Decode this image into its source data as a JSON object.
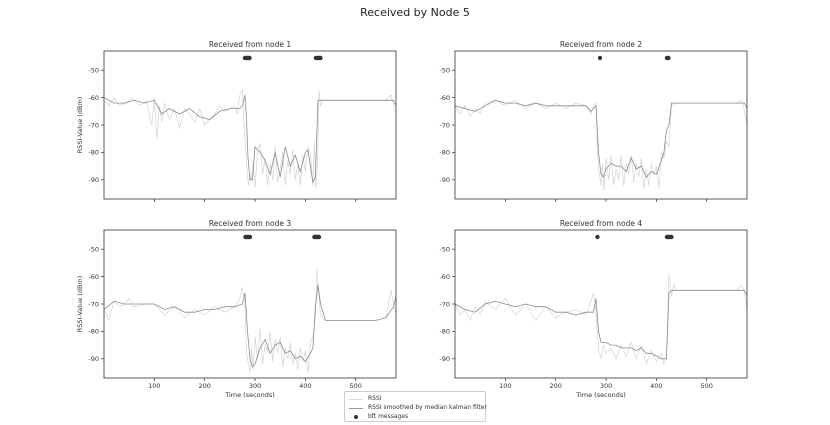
{
  "figure_title": "Received by Node 5",
  "legend": {
    "rssi": "RSSI",
    "smoothed": "RSSI smoothed by median kalman filter",
    "bft": "bft messages"
  },
  "colors": {
    "rssi": "#d4d4d4",
    "smoothed": "#8c8c8c",
    "bft": "#333333",
    "axis": "#333333"
  },
  "chart_data": [
    {
      "type": "line",
      "title": "Received from node 1",
      "ylabel": "RSSI-Value (dBm)",
      "xlabel": "",
      "xlim": [
        0,
        580
      ],
      "ylim": [
        -97,
        -43
      ],
      "xticks": [
        100,
        200,
        300,
        400,
        500
      ],
      "yticks": [
        -50,
        -60,
        -70,
        -80,
        -90
      ],
      "show_xticklabels": false,
      "series": [
        {
          "name": "RSSI smoothed by median kalman filter",
          "x": [
            0,
            20,
            40,
            60,
            80,
            100,
            115,
            130,
            150,
            170,
            190,
            210,
            230,
            250,
            270,
            275,
            280,
            283,
            286,
            290,
            295,
            300,
            310,
            320,
            330,
            340,
            350,
            360,
            370,
            380,
            390,
            400,
            405,
            410,
            415,
            420,
            425,
            430,
            440,
            460,
            480,
            500,
            520,
            540,
            560,
            575,
            580
          ],
          "y": [
            -60,
            -62,
            -62,
            -61,
            -62,
            -61,
            -66,
            -64,
            -66,
            -64,
            -67,
            -68,
            -65,
            -64,
            -64,
            -63,
            -59,
            -68,
            -82,
            -90,
            -90,
            -78,
            -80,
            -83,
            -88,
            -80,
            -89,
            -78,
            -85,
            -81,
            -87,
            -80,
            -79,
            -85,
            -91,
            -89,
            -61,
            -61,
            -61,
            -61,
            -61,
            -61,
            -61,
            -61,
            -61,
            -61,
            -63
          ]
        },
        {
          "name": "RSSI",
          "x": [
            0,
            10,
            20,
            30,
            45,
            55,
            70,
            85,
            90,
            95,
            100,
            105,
            110,
            115,
            120,
            130,
            140,
            150,
            160,
            170,
            180,
            190,
            200,
            210,
            220,
            230,
            240,
            250,
            260,
            265,
            270,
            275,
            278,
            281,
            284,
            287,
            290,
            293,
            296,
            300,
            305,
            310,
            315,
            320,
            325,
            330,
            335,
            340,
            345,
            350,
            355,
            360,
            365,
            370,
            375,
            380,
            385,
            390,
            395,
            400,
            405,
            410,
            415,
            418,
            421,
            424,
            427,
            430,
            435,
            445,
            460,
            480,
            500,
            520,
            540,
            560,
            570,
            575,
            580
          ],
          "y": [
            -61,
            -63,
            -60,
            -63,
            -62,
            -60,
            -63,
            -61,
            -66,
            -70,
            -60,
            -75,
            -63,
            -69,
            -62,
            -68,
            -64,
            -71,
            -64,
            -66,
            -69,
            -64,
            -70,
            -68,
            -66,
            -63,
            -65,
            -64,
            -63,
            -66,
            -59,
            -57,
            -70,
            -78,
            -86,
            -92,
            -88,
            -90,
            -84,
            -93,
            -79,
            -77,
            -88,
            -82,
            -92,
            -84,
            -90,
            -78,
            -91,
            -86,
            -80,
            -92,
            -83,
            -88,
            -79,
            -90,
            -84,
            -92,
            -81,
            -87,
            -78,
            -80,
            -92,
            -76,
            -93,
            -85,
            -57,
            -63,
            -61,
            -61,
            -61,
            -61,
            -61,
            -61,
            -61,
            -61,
            -59,
            -63,
            -66
          ]
        }
      ],
      "bft_x": [
        280,
        283,
        286,
        289,
        421,
        424,
        427,
        430
      ]
    },
    {
      "type": "line",
      "title": "Received from node 2",
      "ylabel": "",
      "xlabel": "",
      "xlim": [
        0,
        580
      ],
      "ylim": [
        -97,
        -43
      ],
      "xticks": [
        100,
        200,
        300,
        400,
        500
      ],
      "yticks": [
        -50,
        -60,
        -70,
        -80,
        -90
      ],
      "show_xticklabels": false,
      "series": [
        {
          "name": "RSSI smoothed by median kalman filter",
          "x": [
            0,
            20,
            40,
            60,
            80,
            100,
            120,
            140,
            160,
            180,
            200,
            220,
            240,
            260,
            270,
            280,
            285,
            290,
            295,
            300,
            310,
            320,
            330,
            340,
            350,
            360,
            370,
            380,
            390,
            400,
            410,
            415,
            420,
            425,
            430,
            440,
            460,
            480,
            500,
            520,
            540,
            560,
            575,
            580
          ],
          "y": [
            -63,
            -64,
            -65,
            -63,
            -61,
            -62,
            -62,
            -63,
            -62,
            -63,
            -63,
            -63,
            -63,
            -63,
            -65,
            -63,
            -80,
            -88,
            -89,
            -86,
            -84,
            -85,
            -85,
            -87,
            -82,
            -86,
            -85,
            -89,
            -87,
            -88,
            -83,
            -80,
            -72,
            -70,
            -62,
            -62,
            -62,
            -62,
            -62,
            -62,
            -62,
            -62,
            -62,
            -64
          ]
        },
        {
          "name": "RSSI",
          "x": [
            0,
            10,
            20,
            30,
            40,
            50,
            60,
            80,
            100,
            120,
            140,
            160,
            180,
            200,
            220,
            240,
            260,
            270,
            275,
            280,
            283,
            286,
            290,
            293,
            296,
            300,
            305,
            310,
            315,
            320,
            325,
            330,
            335,
            340,
            345,
            350,
            355,
            360,
            365,
            370,
            375,
            380,
            385,
            390,
            395,
            400,
            405,
            410,
            415,
            420,
            425,
            430,
            440,
            460,
            480,
            500,
            520,
            540,
            560,
            570,
            575,
            580
          ],
          "y": [
            -63,
            -66,
            -63,
            -67,
            -64,
            -66,
            -62,
            -61,
            -63,
            -61,
            -64,
            -62,
            -64,
            -62,
            -64,
            -62,
            -63,
            -66,
            -63,
            -62,
            -80,
            -87,
            -92,
            -84,
            -94,
            -82,
            -90,
            -81,
            -92,
            -86,
            -90,
            -81,
            -92,
            -84,
            -88,
            -81,
            -91,
            -84,
            -89,
            -82,
            -93,
            -86,
            -92,
            -84,
            -88,
            -85,
            -93,
            -80,
            -82,
            -76,
            -78,
            -63,
            -62,
            -62,
            -62,
            -62,
            -62,
            -62,
            -62,
            -61,
            -65,
            -70
          ]
        }
      ],
      "bft_x": [
        288,
        421,
        424
      ]
    },
    {
      "type": "line",
      "title": "Received from node 3",
      "ylabel": "RSSI-Value (dBm)",
      "xlabel": "Time (seconds)",
      "xlim": [
        0,
        580
      ],
      "ylim": [
        -97,
        -43
      ],
      "xticks": [
        100,
        200,
        300,
        400,
        500
      ],
      "yticks": [
        -50,
        -60,
        -70,
        -80,
        -90
      ],
      "show_xticklabels": true,
      "series": [
        {
          "name": "RSSI smoothed by median kalman filter",
          "x": [
            0,
            20,
            40,
            60,
            80,
            100,
            120,
            140,
            160,
            180,
            200,
            220,
            240,
            260,
            275,
            280,
            285,
            290,
            295,
            300,
            310,
            320,
            330,
            340,
            350,
            360,
            370,
            380,
            390,
            400,
            410,
            415,
            420,
            425,
            430,
            440,
            460,
            480,
            500,
            520,
            540,
            560,
            575,
            580
          ],
          "y": [
            -72,
            -69,
            -70,
            -70,
            -70,
            -70,
            -72,
            -71,
            -73,
            -73,
            -72,
            -72,
            -71,
            -71,
            -70,
            -66,
            -80,
            -90,
            -93,
            -92,
            -86,
            -83,
            -88,
            -85,
            -84,
            -88,
            -87,
            -90,
            -89,
            -91,
            -88,
            -86,
            -71,
            -63,
            -70,
            -76,
            -76,
            -76,
            -76,
            -76,
            -76,
            -75,
            -71,
            -67
          ]
        },
        {
          "name": "RSSI",
          "x": [
            0,
            10,
            20,
            30,
            40,
            50,
            60,
            80,
            100,
            120,
            140,
            160,
            180,
            200,
            220,
            240,
            260,
            270,
            275,
            280,
            283,
            286,
            290,
            293,
            296,
            300,
            305,
            310,
            315,
            320,
            325,
            330,
            335,
            340,
            345,
            350,
            355,
            360,
            365,
            370,
            375,
            380,
            385,
            390,
            395,
            400,
            405,
            410,
            415,
            420,
            423,
            426,
            430,
            440,
            460,
            480,
            500,
            520,
            540,
            560,
            570,
            575,
            580
          ],
          "y": [
            -72,
            -76,
            -69,
            -71,
            -70,
            -68,
            -71,
            -70,
            -70,
            -74,
            -71,
            -75,
            -72,
            -74,
            -71,
            -73,
            -71,
            -68,
            -64,
            -70,
            -88,
            -91,
            -95,
            -86,
            -94,
            -82,
            -90,
            -79,
            -92,
            -85,
            -87,
            -80,
            -91,
            -83,
            -88,
            -82,
            -93,
            -86,
            -90,
            -84,
            -92,
            -88,
            -94,
            -86,
            -91,
            -87,
            -95,
            -84,
            -82,
            -75,
            -57,
            -65,
            -74,
            -76,
            -76,
            -76,
            -76,
            -76,
            -76,
            -75,
            -65,
            -70,
            -74
          ]
        }
      ],
      "bft_x": [
        281,
        284,
        287,
        290,
        418,
        421,
        424,
        427
      ]
    },
    {
      "type": "line",
      "title": "Received from node 4",
      "ylabel": "",
      "xlabel": "Time (seconds)",
      "xlim": [
        0,
        580
      ],
      "ylim": [
        -97,
        -43
      ],
      "xticks": [
        100,
        200,
        300,
        400,
        500
      ],
      "yticks": [
        -50,
        -60,
        -70,
        -80,
        -90
      ],
      "show_xticklabels": true,
      "series": [
        {
          "name": "RSSI smoothed by median kalman filter",
          "x": [
            0,
            20,
            40,
            60,
            80,
            100,
            120,
            140,
            160,
            180,
            200,
            220,
            240,
            260,
            275,
            280,
            285,
            290,
            300,
            310,
            320,
            330,
            340,
            350,
            360,
            370,
            380,
            390,
            400,
            410,
            420,
            425,
            430,
            440,
            460,
            480,
            500,
            520,
            540,
            560,
            575,
            580
          ],
          "y": [
            -70,
            -72,
            -73,
            -70,
            -69,
            -70,
            -71,
            -70,
            -71,
            -71,
            -73,
            -73,
            -74,
            -73,
            -73,
            -68,
            -80,
            -84,
            -84,
            -85,
            -85,
            -86,
            -86,
            -86,
            -87,
            -86,
            -88,
            -88,
            -89,
            -90,
            -90,
            -66,
            -65,
            -65,
            -65,
            -65,
            -65,
            -65,
            -65,
            -65,
            -65,
            -67
          ]
        },
        {
          "name": "RSSI",
          "x": [
            0,
            10,
            20,
            30,
            40,
            50,
            60,
            80,
            100,
            120,
            140,
            160,
            180,
            200,
            220,
            240,
            260,
            270,
            275,
            280,
            283,
            286,
            290,
            295,
            300,
            310,
            320,
            330,
            340,
            350,
            360,
            370,
            380,
            390,
            400,
            410,
            415,
            420,
            425,
            430,
            435,
            440,
            460,
            480,
            500,
            520,
            540,
            560,
            570,
            575,
            580
          ],
          "y": [
            -70,
            -74,
            -72,
            -76,
            -71,
            -74,
            -69,
            -72,
            -68,
            -74,
            -70,
            -76,
            -71,
            -75,
            -73,
            -72,
            -74,
            -69,
            -66,
            -72,
            -82,
            -87,
            -90,
            -85,
            -88,
            -86,
            -90,
            -85,
            -89,
            -84,
            -90,
            -85,
            -92,
            -87,
            -91,
            -88,
            -92,
            -90,
            -59,
            -67,
            -63,
            -65,
            -65,
            -65,
            -65,
            -65,
            -65,
            -65,
            -63,
            -66,
            -72
          ]
        }
      ],
      "bft_x": [
        283,
        421,
        424,
        427,
        430
      ]
    }
  ]
}
